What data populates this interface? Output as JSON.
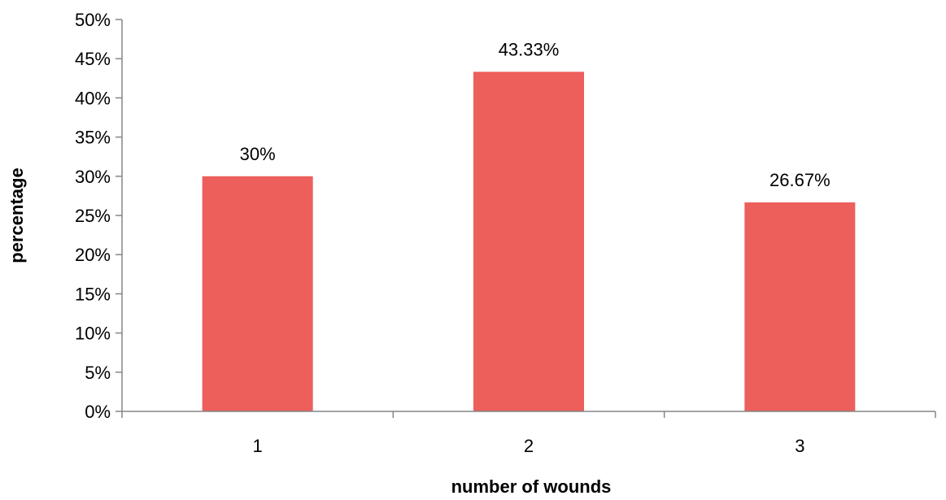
{
  "chart_data": {
    "type": "bar",
    "title": "",
    "categories": [
      "1",
      "2",
      "3"
    ],
    "values": [
      30,
      43.33,
      26.67
    ],
    "data_labels": [
      "30%",
      "43.33%",
      "26.67%"
    ],
    "ylim": [
      0,
      50
    ],
    "yticks": [
      0,
      5,
      10,
      15,
      20,
      25,
      30,
      35,
      40,
      45,
      50
    ],
    "ytick_labels": [
      "0%",
      "5%",
      "10%",
      "15%",
      "20%",
      "25%",
      "30%",
      "35%",
      "40%",
      "45%",
      "50%"
    ],
    "xlabel": "number of wounds",
    "ylabel": "percentage",
    "bar_color": "#EC5F5B",
    "grid": false,
    "legend": "none"
  }
}
